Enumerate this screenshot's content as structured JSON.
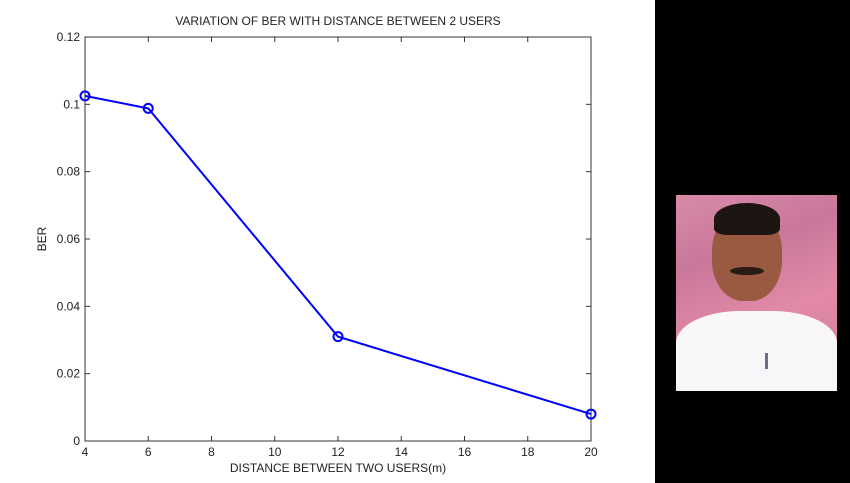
{
  "chart_data": {
    "type": "line",
    "title": "VARIATION OF BER WITH DISTANCE BETWEEN 2 USERS",
    "xlabel": "DISTANCE BETWEEN TWO USERS(m)",
    "ylabel": "BER",
    "x": [
      4,
      6,
      12,
      20
    ],
    "series": [
      {
        "name": "BER",
        "values": [
          0.1025,
          0.0988,
          0.031,
          0.008
        ],
        "color": "#0000ff",
        "marker": "circle"
      }
    ],
    "xlim": [
      4,
      20
    ],
    "ylim": [
      0,
      0.12
    ],
    "xticks": [
      "4",
      "6",
      "8",
      "10",
      "12",
      "14",
      "16",
      "18",
      "20"
    ],
    "yticks": [
      "0",
      "0.02",
      "0.04",
      "0.06",
      "0.08",
      "0.1",
      "0.12"
    ],
    "grid": false,
    "legend": null
  },
  "right_panel": {
    "background": "#000000",
    "photo_description": "portrait photo of a man in white shirt"
  }
}
